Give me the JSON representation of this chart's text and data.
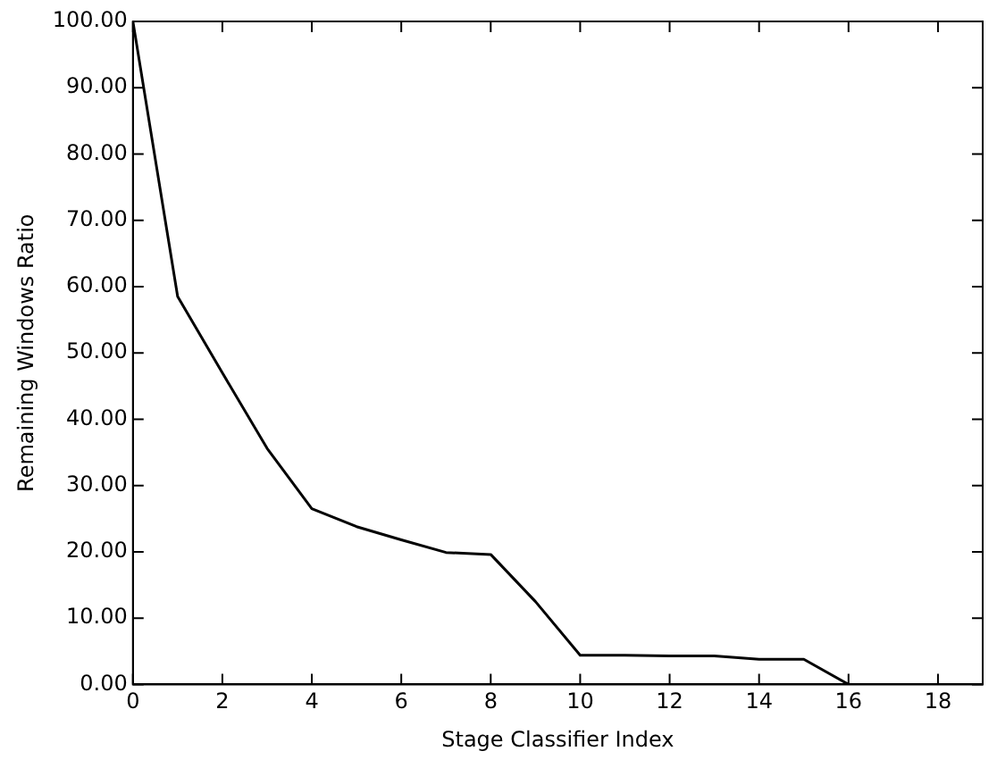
{
  "chart_data": {
    "type": "line",
    "xlabel": "Stage Classifier Index",
    "ylabel": "Remaining Windows Ratio",
    "x": [
      0,
      1,
      2,
      3,
      4,
      5,
      6,
      7,
      8,
      9,
      10,
      11,
      12,
      13,
      14,
      15,
      16,
      17,
      18,
      19
    ],
    "series": [
      {
        "color": "#000000",
        "values": [
          100,
          58.5,
          47,
          35.6,
          26.5,
          23.8,
          21.8,
          19.9,
          19.6,
          12.5,
          4.4,
          4.4,
          4.3,
          4.3,
          3.8,
          3.8,
          0,
          0,
          0,
          0
        ]
      }
    ],
    "xlim": [
      0,
      19
    ],
    "xticks": [
      0,
      2,
      4,
      6,
      8,
      10,
      12,
      14,
      16,
      18
    ],
    "ylim": [
      0,
      100
    ],
    "yticks": [
      {
        "value": 0,
        "label": "0.00"
      },
      {
        "value": 10,
        "label": "10.00"
      },
      {
        "value": 20,
        "label": "20.00"
      },
      {
        "value": 30,
        "label": "30.00"
      },
      {
        "value": 40,
        "label": "40.00"
      },
      {
        "value": 50,
        "label": "50.00"
      },
      {
        "value": 60,
        "label": "60.00"
      },
      {
        "value": 70,
        "label": "70.00"
      },
      {
        "value": 80,
        "label": "80.00"
      },
      {
        "value": 90,
        "label": "90.00"
      },
      {
        "value": 100,
        "label": "100.00"
      }
    ],
    "grid": false,
    "legend": false,
    "marker": "none",
    "line_style": "solid"
  }
}
